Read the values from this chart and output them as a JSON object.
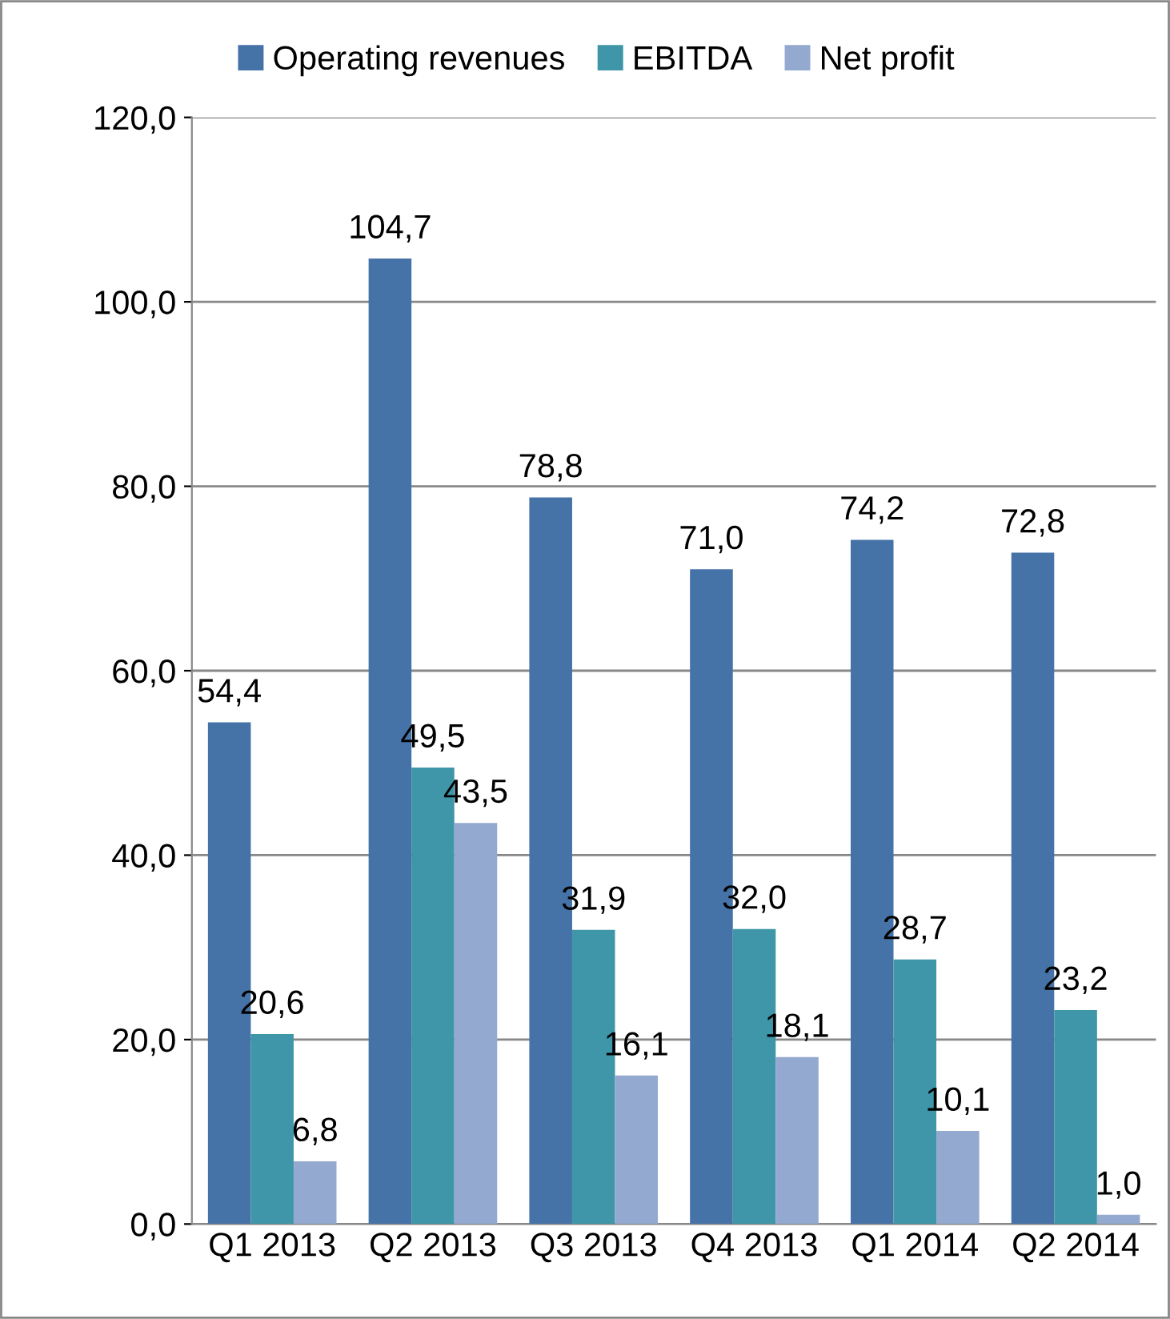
{
  "chart_data": {
    "type": "bar",
    "categories": [
      "Q1 2013",
      "Q2 2013",
      "Q3 2013",
      "Q4 2013",
      "Q1 2014",
      "Q2 2014"
    ],
    "series": [
      {
        "name": "Operating revenues",
        "color": "#4572a7",
        "values": [
          54.4,
          104.7,
          78.8,
          71.0,
          74.2,
          72.8
        ],
        "value_labels": [
          "54,4",
          "104,7",
          "78,8",
          "71,0",
          "74,2",
          "72,8"
        ]
      },
      {
        "name": "EBITDA",
        "color": "#3e96a8",
        "values": [
          20.6,
          49.5,
          31.9,
          32.0,
          28.7,
          23.2
        ],
        "value_labels": [
          "20,6",
          "49,5",
          "31,9",
          "32,0",
          "28,7",
          "23,2"
        ]
      },
      {
        "name": "Net profit",
        "color": "#93a9cf",
        "values": [
          6.8,
          43.5,
          16.1,
          18.1,
          10.1,
          1.0
        ],
        "value_labels": [
          "6,8",
          "43,5",
          "16,1",
          "18,1",
          "10,1",
          "1,0"
        ]
      }
    ],
    "ylim": [
      0,
      120
    ],
    "yticks": [
      {
        "value": 0,
        "label": "0,0"
      },
      {
        "value": 20,
        "label": "20,0"
      },
      {
        "value": 40,
        "label": "40,0"
      },
      {
        "value": 60,
        "label": "60,0"
      },
      {
        "value": 80,
        "label": "80,0"
      },
      {
        "value": 100,
        "label": "100,0"
      },
      {
        "value": 120,
        "label": "120,0"
      }
    ],
    "grid": "y",
    "legend": "top"
  }
}
